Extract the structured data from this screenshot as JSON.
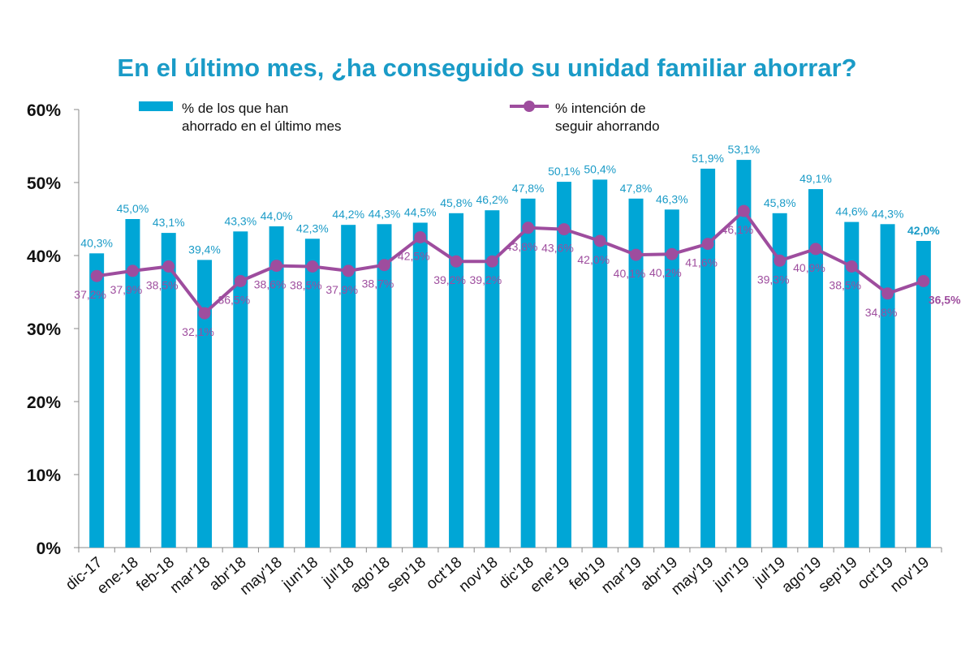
{
  "chart_data": {
    "type": "bar",
    "title": "En el último mes, ¿ha conseguido su unidad familiar ahorrar?",
    "categories": [
      "dic-17",
      "ene-18",
      "feb-18",
      "mar'18",
      "abr'18",
      "may'18",
      "jun'18",
      "jul'18",
      "ago'18",
      "sep'18",
      "oct'18",
      "nov'18",
      "dic'18",
      "ene'19",
      "feb'19",
      "mar'19",
      "abr'19",
      "may'19",
      "jun'19",
      "jul'19",
      "ago'19",
      "sep'19",
      "oct'19",
      "nov'19"
    ],
    "ylim": [
      0,
      60
    ],
    "yticks": [
      "0%",
      "10%",
      "20%",
      "30%",
      "40%",
      "50%",
      "60%"
    ],
    "series": [
      {
        "name": "% de los que han ahorrado en el último mes",
        "legend_lines": [
          "%  de los que han",
          "ahorrado en el último mes"
        ],
        "kind": "bar",
        "color": "#00A6D6",
        "label_color": "#1A9BC7",
        "values": [
          40.3,
          45.0,
          43.1,
          39.4,
          43.3,
          44.0,
          42.3,
          44.2,
          44.3,
          44.5,
          45.8,
          46.2,
          47.8,
          50.1,
          50.4,
          47.8,
          46.3,
          51.9,
          53.1,
          45.8,
          49.1,
          44.6,
          44.3,
          42.0
        ],
        "labels": [
          "40,3%",
          "45,0%",
          "43,1%",
          "39,4%",
          "43,3%",
          "44,0%",
          "42,3%",
          "44,2%",
          "44,3%",
          "44,5%",
          "45,8%",
          "46,2%",
          "47,8%",
          "50,1%",
          "50,4%",
          "47,8%",
          "46,3%",
          "51,9%",
          "53,1%",
          "45,8%",
          "49,1%",
          "44,6%",
          "44,3%",
          "42,0%"
        ]
      },
      {
        "name": "% intención de seguir ahorrando",
        "legend_lines": [
          "%  intención de",
          "seguir ahorrando"
        ],
        "kind": "line",
        "color": "#9E4D9E",
        "values": [
          37.2,
          37.9,
          38.5,
          32.1,
          36.5,
          38.6,
          38.5,
          37.9,
          38.7,
          42.5,
          39.2,
          39.2,
          43.8,
          43.6,
          42.0,
          40.1,
          40.2,
          41.6,
          46.1,
          39.3,
          40.9,
          38.5,
          34.8,
          36.5
        ],
        "labels": [
          "37,2%",
          "37,9%",
          "38,5%",
          "32,1%",
          "36,5%",
          "38,6%",
          "38,5%",
          "37,9%",
          "38,7%",
          "42,5%",
          "39,2%",
          "39,2%",
          "43,8%",
          "43,6%",
          "42,0%",
          "40,1%",
          "40,2%",
          "41,6%",
          "46,1%",
          "39,3%",
          "40,9%",
          "38,5%",
          "34,8%",
          "36,5%"
        ]
      }
    ],
    "legend_position": "top"
  }
}
